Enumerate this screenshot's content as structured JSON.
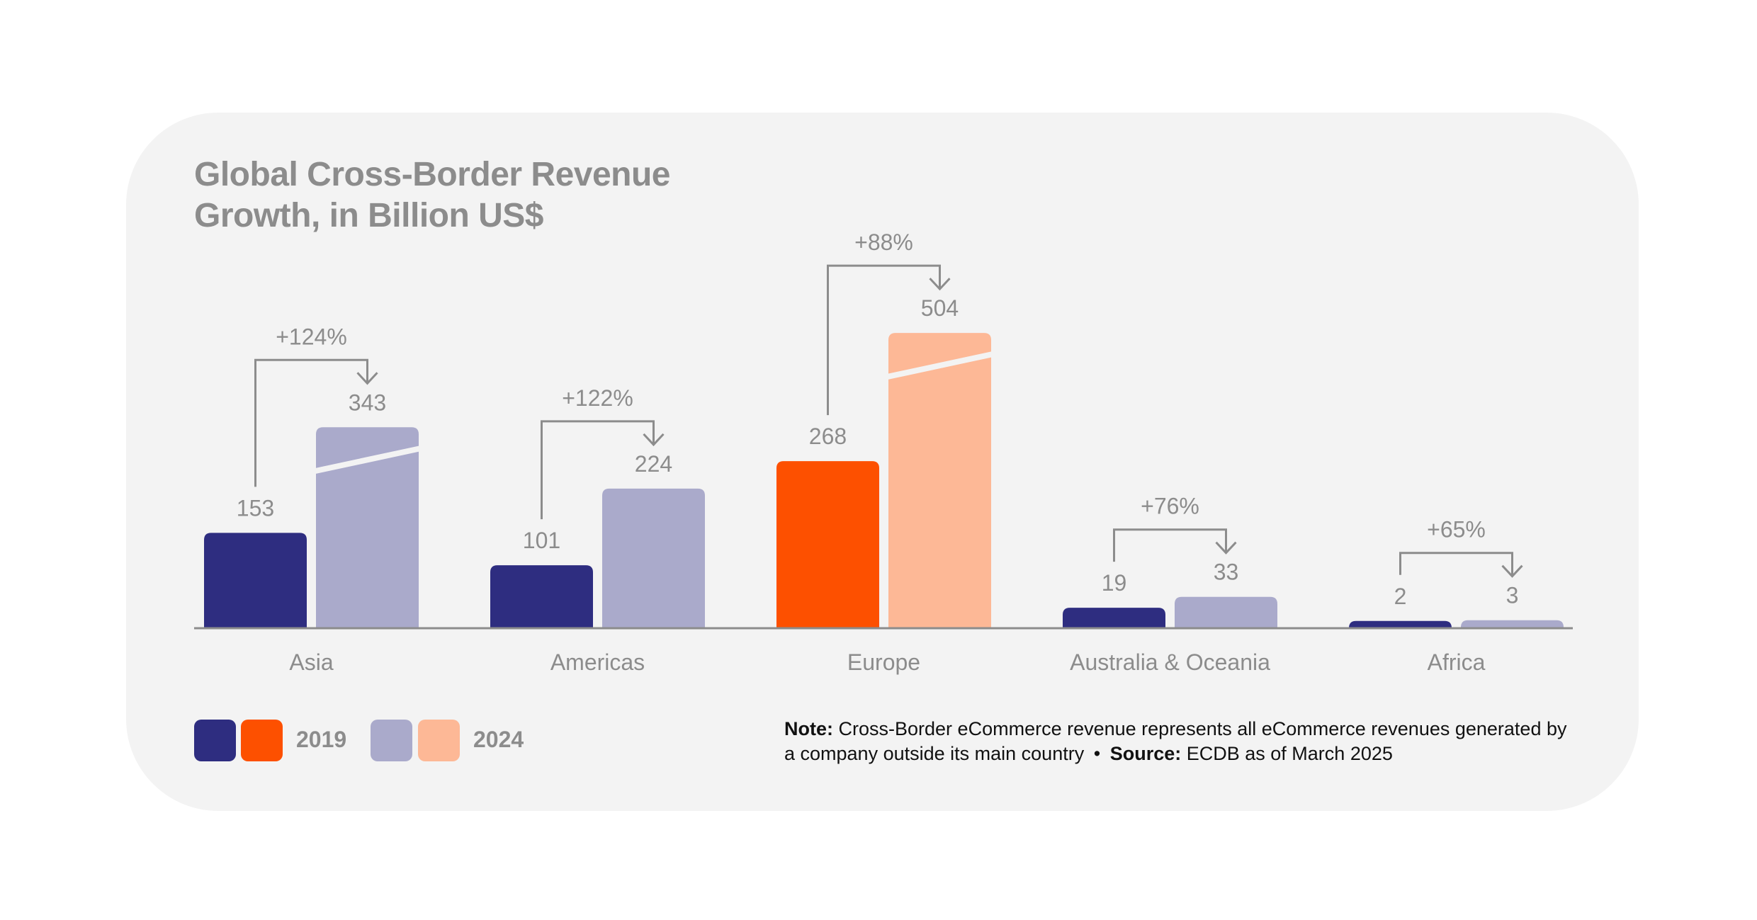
{
  "colors": {
    "background": "#f3f3f3",
    "text_gray": "#8c8c8c",
    "2019_default": "#2e2d80",
    "2024_default": "#aaaacb",
    "2019_highlight": "#fd5000",
    "2024_highlight": "#fdb896"
  },
  "chart_data": {
    "type": "bar",
    "title": "Global Cross-Border Revenue Growth, in Billion US$",
    "title_lines": [
      "Global Cross-Border Revenue",
      "Growth, in Billion US$"
    ],
    "categories": [
      "Asia",
      "Americas",
      "Europe",
      "Australia & Oceania",
      "Africa"
    ],
    "series": [
      {
        "name": "2019",
        "values": [
          153,
          101,
          268,
          19,
          2
        ]
      },
      {
        "name": "2024",
        "values": [
          343,
          224,
          504,
          33,
          3
        ]
      }
    ],
    "growth_labels": [
      "+124%",
      "+122%",
      "+88%",
      "+76%",
      "+65%"
    ],
    "highlighted_category": "Europe",
    "broken_bars": [
      "Asia 2024",
      "Europe 2024"
    ],
    "xlabel": "",
    "ylabel": "",
    "grid": false,
    "legend_placement": "bottom-left"
  },
  "legend": {
    "label_2019": "2019",
    "label_2024": "2024"
  },
  "footnote": {
    "note_label": "Note:",
    "note_text": "Cross-Border eCommerce revenue represents all eCommerce revenues generated by a company outside its main country",
    "separator": "•",
    "source_label": "Source:",
    "source_text": "ECDB as of March 2025"
  }
}
